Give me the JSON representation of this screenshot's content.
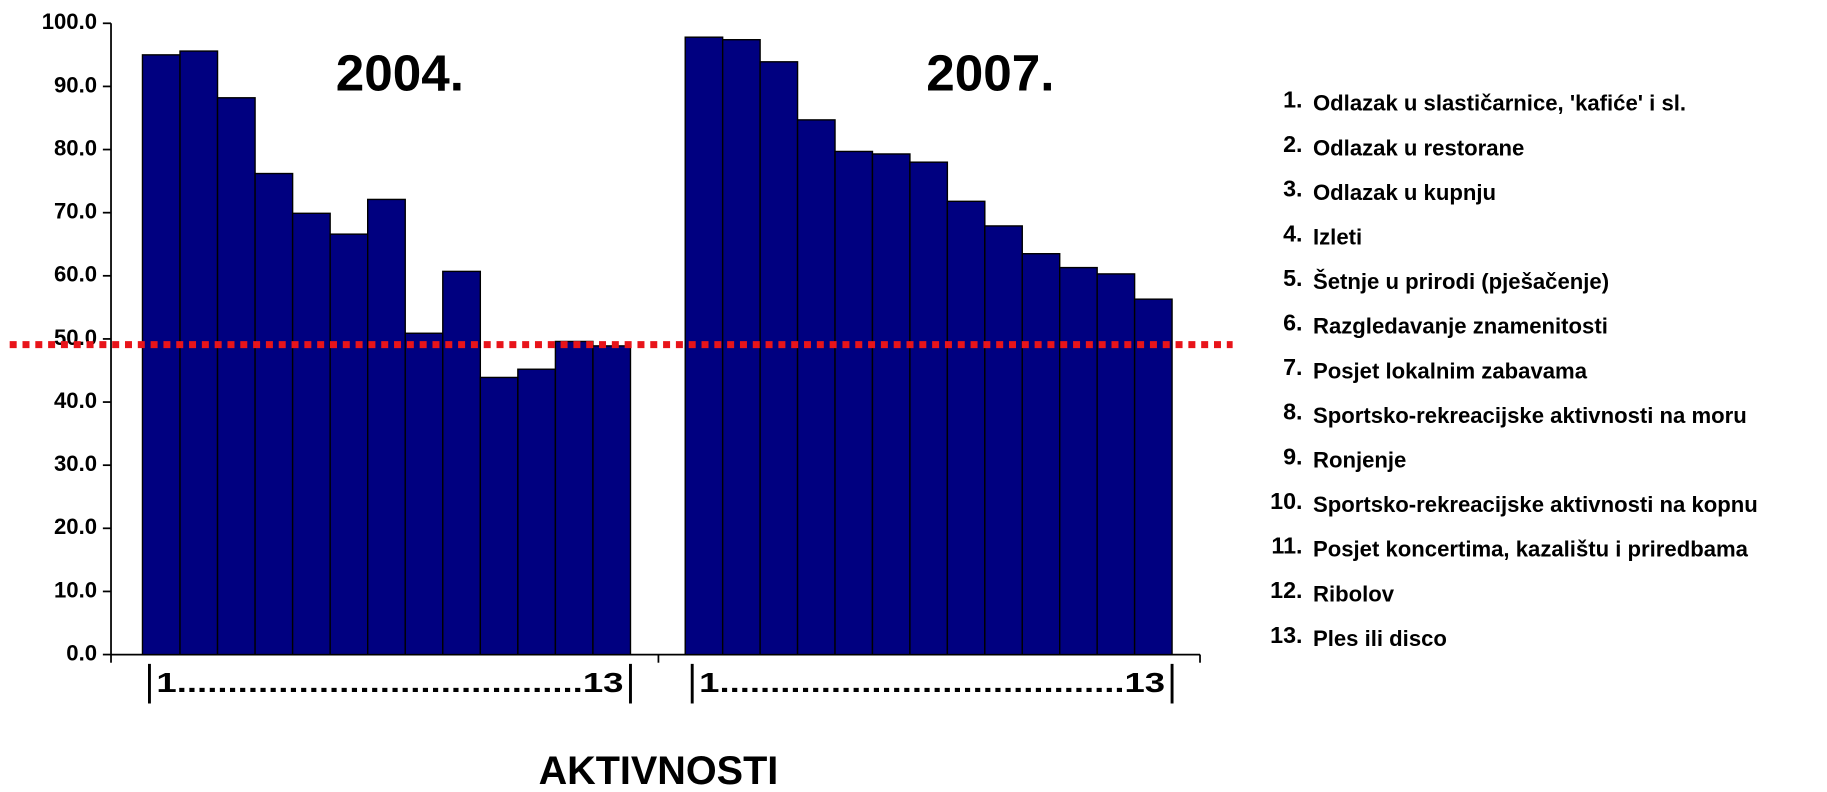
{
  "chart_data": {
    "type": "bar",
    "x_label": "AKTIVNOSTI",
    "ylim": [
      0,
      100
    ],
    "yticks": [
      {
        "value": 0,
        "label": "0.0"
      },
      {
        "value": 10,
        "label": "10.0"
      },
      {
        "value": 20,
        "label": "20.0"
      },
      {
        "value": 30,
        "label": "30.0"
      },
      {
        "value": 40,
        "label": "40.0"
      },
      {
        "value": 50,
        "label": "50.0"
      },
      {
        "value": 60,
        "label": "60.0"
      },
      {
        "value": 70,
        "label": "70.0"
      },
      {
        "value": 80,
        "label": "80.0"
      },
      {
        "value": 90,
        "label": "90.0"
      },
      {
        "value": 100,
        "label": "100.0"
      }
    ],
    "category_numbers": [
      "1.",
      "2.",
      "3.",
      "4.",
      "5.",
      "6.",
      "7.",
      "8.",
      "9.",
      "10.",
      "11.",
      "12.",
      "13."
    ],
    "categories": [
      "Odlazak u slastičarnice, 'kafiće' i sl.",
      "Odlazak u restorane",
      "Odlazak u kupnju",
      "Izleti",
      "Šetnje u prirodi (pješačenje)",
      "Razgledavanje znamenitosti",
      "Posjet lokalnim zabavama",
      "Sportsko-rekreacijske aktivnosti na moru",
      "Ronjenje",
      "Sportsko-rekreacijske aktivnosti na kopnu",
      "Posjet koncertima, kazalištu i priredbama",
      "Ribolov",
      "Ples ili disco"
    ],
    "series": [
      {
        "name": "2004.",
        "color": "#000080",
        "tick_label": "1........................................13",
        "values": [
          95.0,
          95.6,
          88.2,
          76.2,
          69.9,
          66.6,
          72.1,
          50.9,
          60.7,
          43.9,
          45.2,
          49.6,
          48.9
        ]
      },
      {
        "name": "2007.",
        "color": "#000080",
        "tick_label": "1........................................13",
        "values": [
          97.8,
          97.4,
          93.9,
          84.7,
          79.7,
          79.3,
          78.0,
          71.8,
          67.9,
          63.5,
          61.3,
          60.3,
          56.3
        ]
      }
    ],
    "reference_line": {
      "value": 49.1,
      "color": "#e8141a"
    }
  }
}
